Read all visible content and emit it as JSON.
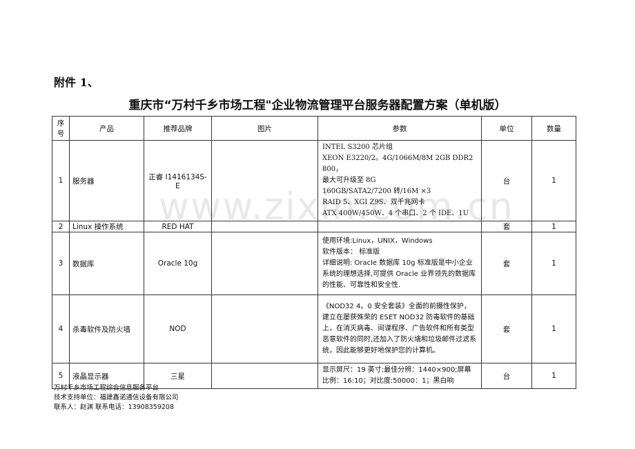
{
  "attachment": "附件 1、",
  "title": "重庆市“万村千乡市场工程\"企业物流管理平台服务器配置方案（单机版）",
  "headers": [
    "序号",
    "产品",
    "推荐品牌",
    "图片",
    "参数",
    "单位",
    "数量"
  ],
  "rows": [
    {
      "no": "1",
      "product": "服务器",
      "brand": "正睿 I1416134S-E",
      "image": "",
      "params": [
        "INTEL  S3200 芯片组",
        "XEON E3220/2。4G/1066M/8M 2GB DDR2 800，",
        "最大可升级至 8G",
        "160GB/SATA2/7200 转/16M ×3",
        "RAID 5、XGI Z9S、双千兆网卡",
        "ATX 400W/450W、4 个串口、2 个 IDE、1U"
      ],
      "unit": "台",
      "qty": "1"
    },
    {
      "no": "2",
      "product": "Linux 操作系统",
      "brand": "RED HAT",
      "image": "",
      "params": [],
      "unit": "套",
      "qty": "1"
    },
    {
      "no": "3",
      "product": "数据库",
      "brand": "Oracle 10g",
      "image": "",
      "params": [
        "使用环境:Linux，UNIX，Windows",
        "软件版本：  标准版",
        "详细说明: Oracle 数据库 10g 标准版是中小企业系统的理想选择,可提供 Oracle 业界领先的数据库的性能、可靠性和安全性."
      ],
      "unit": "套",
      "qty": "1"
    },
    {
      "no": "4",
      "product": "杀毒软件及防火墙",
      "brand": "NOD",
      "image": "",
      "params": [
        "《NOD32 4。0 安全套装》全面的前摄性保护，建立在屡获殊荣的 ESET NOD32 防毒软件的基础上，在消灭病毒、间谍程序、广告软件和所有类型恶意软件的同时,还加入了防火墙和垃圾邮件过滤系统，因此能够更好地保护您的计算机。"
      ],
      "unit": "套",
      "qty": "1"
    },
    {
      "no": "5",
      "product": "液晶显示器",
      "brand": "三星",
      "image": "",
      "params": [
        "显示屏尺：19 英寸;最佳分辨：1440×900;屏幕比例：16:10；对比度:50000：1；黑白响"
      ],
      "unit": "台",
      "qty": "1"
    }
  ],
  "watermark": "www.zixin.com.cn",
  "footer": [
    "万村千乡市场工程综合信息服务平台",
    "技术支持单位：福建鑫诺通信设备有限公司",
    "联系人：赵渊   联系电话：13908359208"
  ]
}
